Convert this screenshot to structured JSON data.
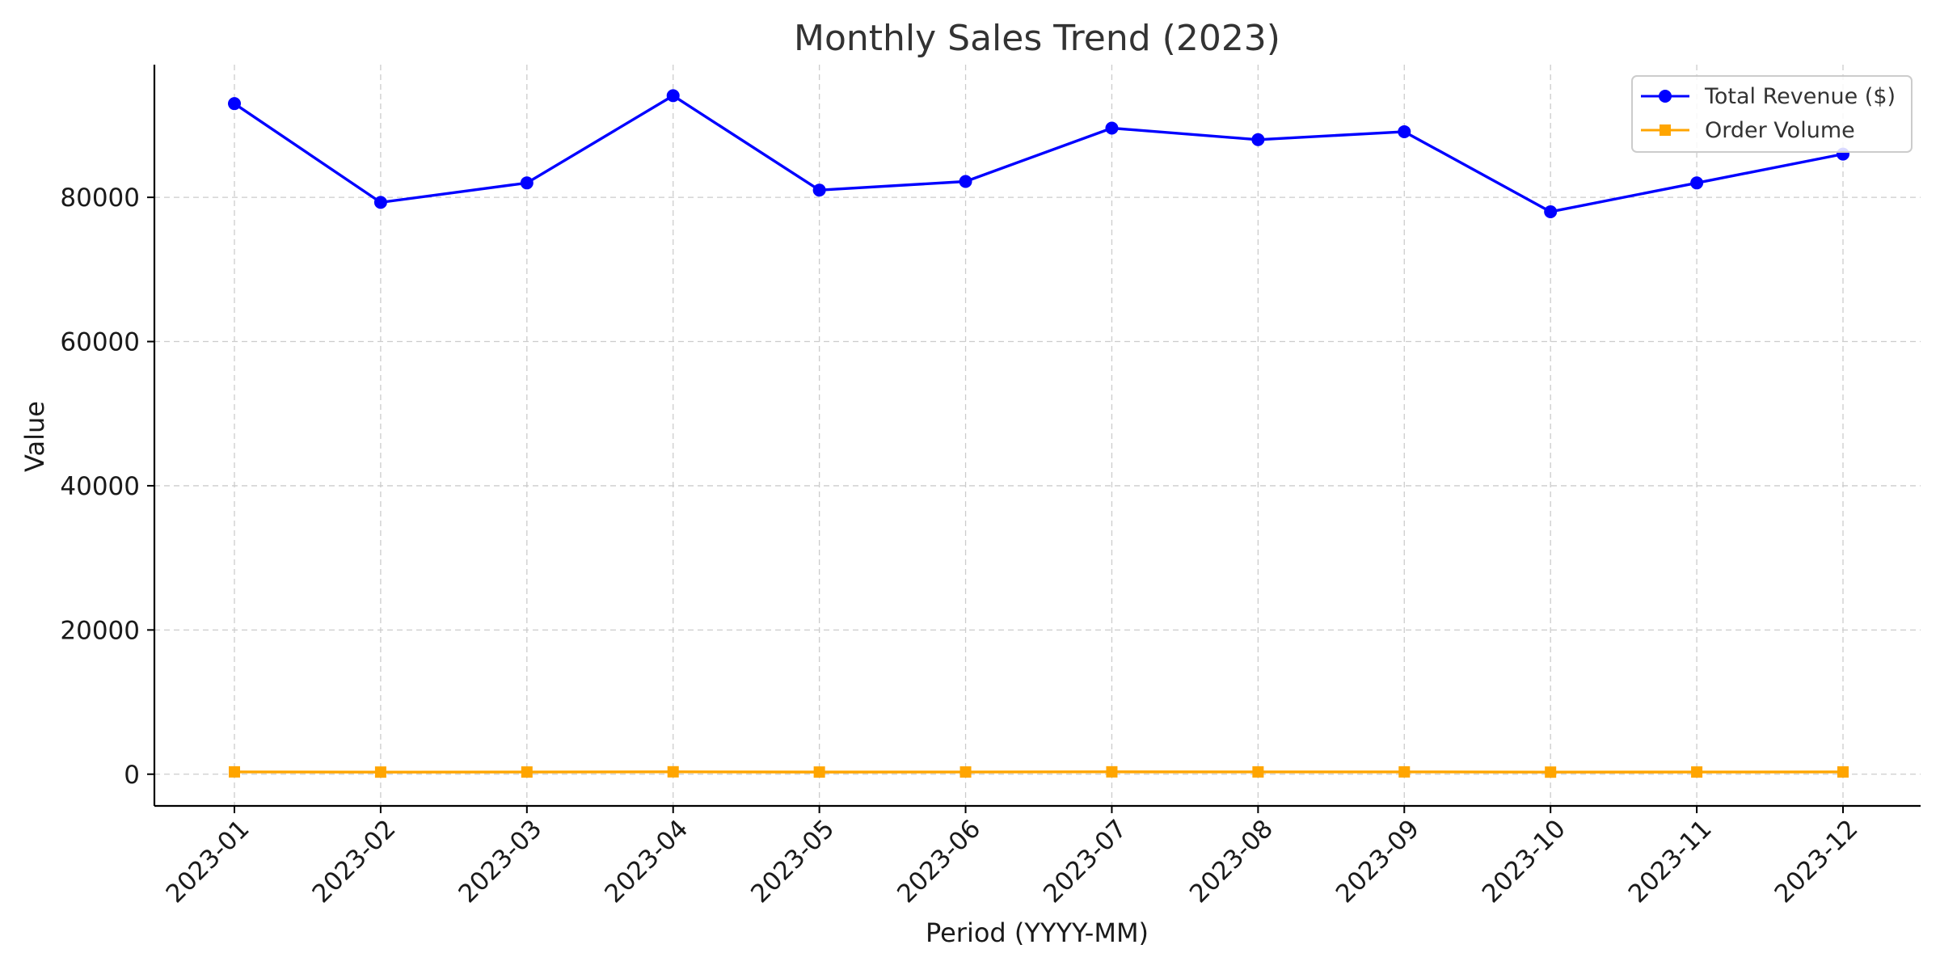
{
  "chart_data": {
    "type": "line",
    "title": "Monthly Sales Trend (2023)",
    "xlabel": "Period (YYYY-MM)",
    "ylabel": "Value",
    "categories": [
      "2023-01",
      "2023-02",
      "2023-03",
      "2023-04",
      "2023-05",
      "2023-06",
      "2023-07",
      "2023-08",
      "2023-09",
      "2023-10",
      "2023-11",
      "2023-12"
    ],
    "yticks": [
      0,
      20000,
      40000,
      60000,
      80000
    ],
    "ylim": [
      -4400,
      98400
    ],
    "grid": true,
    "legend_position": "top-right",
    "series": [
      {
        "name": "Total Revenue ($)",
        "color": "#0000ff",
        "marker": "circle",
        "values": [
          93000,
          79300,
          82000,
          94100,
          81000,
          82200,
          89600,
          88000,
          89100,
          78000,
          82000,
          86000
        ]
      },
      {
        "name": "Order Volume",
        "color": "#ffa500",
        "marker": "square",
        "values": [
          320,
          290,
          300,
          330,
          295,
          305,
          325,
          315,
          320,
          285,
          300,
          310
        ]
      }
    ]
  }
}
